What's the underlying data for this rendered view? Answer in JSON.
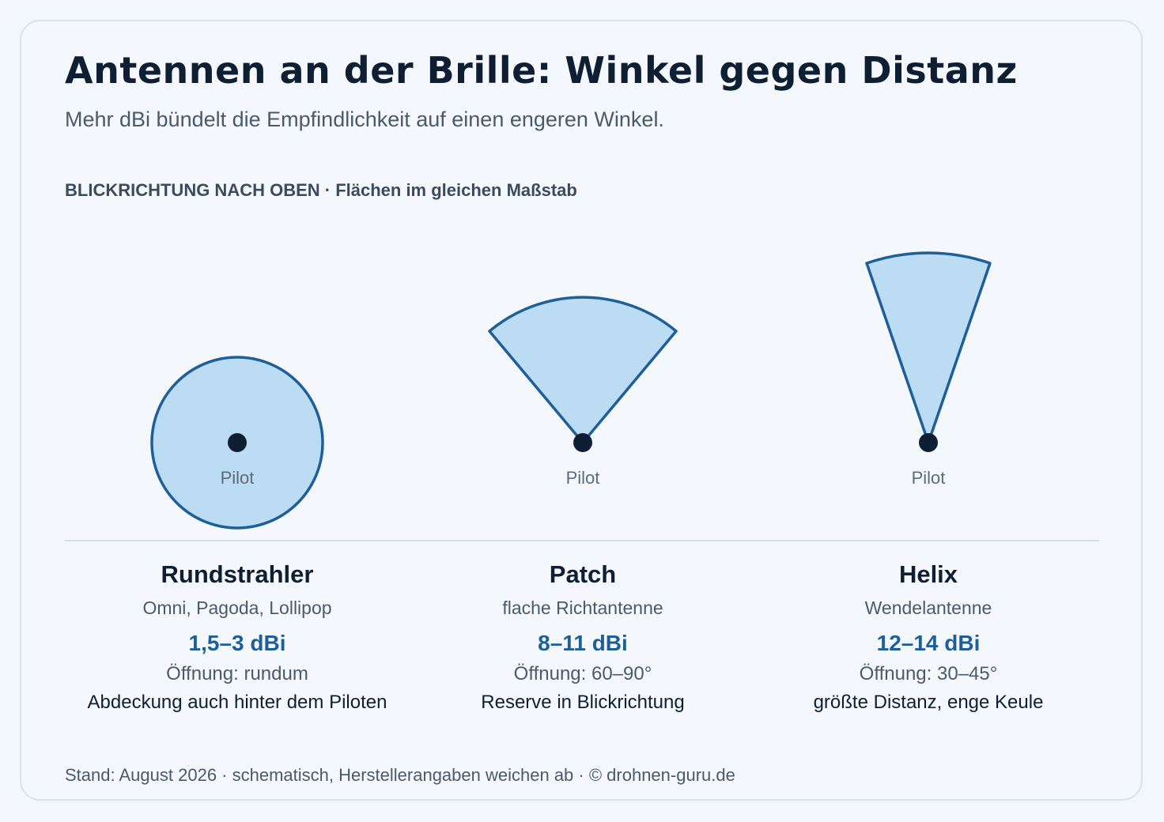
{
  "header": {
    "title": "Antennen an der Brille: Winkel gegen Distanz",
    "subtitle": "Mehr dBi bündelt die Empfindlichkeit auf einen engeren Winkel.",
    "section_label": "BLICKRICHTUNG NACH OBEN · Flächen im gleichen Maßstab"
  },
  "colors": {
    "fill": "#bcdcf3",
    "stroke": "#1f5f99",
    "dot": "#0f1f33",
    "accent": "#1f5f99"
  },
  "antennas": [
    {
      "name": "Rundstrahler",
      "subtitle": "Omni, Pagoda, Lollipop",
      "gain": "1,5–3 dBi",
      "opening": "Öffnung: rundum",
      "note": "Abdeckung auch hinter dem Piloten",
      "pilot_label": "Pilot",
      "shape": "circle",
      "beam_angle_deg": 360
    },
    {
      "name": "Patch",
      "subtitle": "flache Richtantenne",
      "gain": "8–11 dBi",
      "opening": "Öffnung: 60–90°",
      "note": "Reserve in Blickrichtung",
      "pilot_label": "Pilot",
      "shape": "sector",
      "beam_angle_deg": 80
    },
    {
      "name": "Helix",
      "subtitle": "Wendelantenne",
      "gain": "12–14 dBi",
      "opening": "Öffnung: 30–45°",
      "note": "größte Distanz, enge Keule",
      "pilot_label": "Pilot",
      "shape": "sector",
      "beam_angle_deg": 40
    }
  ],
  "footer": "Stand: August 2026 · schematisch, Herstellerangaben weichen ab · © drohnen-guru.de"
}
